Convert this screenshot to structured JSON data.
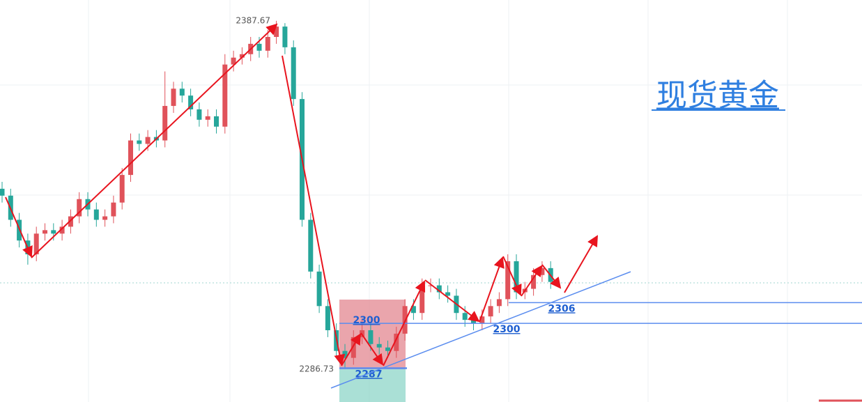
{
  "chart_data": {
    "type": "candlestick",
    "title": "现货黄金",
    "open": [
      2339,
      2337,
      2330,
      2324,
      2320,
      2326,
      2327,
      2326,
      2328,
      2331,
      2336,
      2333,
      2330,
      2331,
      2335,
      2343,
      2353,
      2352,
      2354,
      2353,
      2363,
      2368,
      2366,
      2362,
      2359,
      2360,
      2357,
      2375,
      2377,
      2378,
      2381,
      2379,
      2383,
      2386,
      2380,
      2365,
      2330,
      2315,
      2305,
      2298,
      2292,
      2290,
      2296,
      2298,
      2294,
      2293,
      2292,
      2297,
      2305,
      2303,
      2311,
      2311,
      2309,
      2308,
      2303,
      2301,
      2300,
      2302,
      2305,
      2307,
      2318,
      2309,
      2310,
      2314,
      2316
    ],
    "close": [
      2337,
      2330,
      2324,
      2320,
      2326,
      2327,
      2326,
      2328,
      2331,
      2336,
      2333,
      2330,
      2331,
      2335,
      2343,
      2353,
      2352,
      2354,
      2353,
      2363,
      2368,
      2366,
      2362,
      2359,
      2360,
      2357,
      2375,
      2377,
      2378,
      2381,
      2379,
      2383,
      2386,
      2380,
      2365,
      2330,
      2315,
      2305,
      2298,
      2292,
      2290,
      2296,
      2298,
      2294,
      2293,
      2292,
      2297,
      2305,
      2303,
      2311,
      2311,
      2309,
      2308,
      2303,
      2301,
      2300,
      2302,
      2305,
      2307,
      2318,
      2309,
      2310,
      2314,
      2316,
      2312
    ],
    "high": [
      2341,
      2339,
      2332,
      2326,
      2328,
      2329,
      2329,
      2330,
      2333,
      2338,
      2338,
      2335,
      2333,
      2337,
      2345,
      2355,
      2355,
      2356,
      2356,
      2373,
      2370,
      2370,
      2368,
      2364,
      2362,
      2362,
      2378,
      2379,
      2380,
      2383,
      2383,
      2385,
      2387.67,
      2387,
      2382,
      2367,
      2332,
      2317,
      2307,
      2300,
      2294,
      2298,
      2301,
      2300,
      2296,
      2295,
      2299,
      2307,
      2307,
      2313,
      2313,
      2313,
      2311,
      2310,
      2305,
      2303,
      2304,
      2307,
      2309,
      2320,
      2320,
      2312,
      2316,
      2318,
      2318
    ],
    "low": [
      2335,
      2328,
      2322,
      2317,
      2318,
      2324,
      2324,
      2324,
      2326,
      2329,
      2331,
      2328,
      2328,
      2329,
      2333,
      2341,
      2350,
      2350,
      2351,
      2351,
      2361,
      2364,
      2360,
      2357,
      2357,
      2355,
      2355,
      2373,
      2375,
      2376,
      2377,
      2377,
      2381,
      2378,
      2363,
      2328,
      2313,
      2303,
      2296,
      2290,
      2286.73,
      2288,
      2294,
      2292,
      2291,
      2290,
      2290,
      2295,
      2301,
      2301,
      2309,
      2307,
      2306,
      2301,
      2299,
      2298,
      2298,
      2300,
      2303,
      2305,
      2307,
      2307,
      2308,
      2312,
      2310
    ],
    "high_label": 2387.67,
    "low_label": 2286.73,
    "levels": [
      2306,
      2300,
      2300,
      2287
    ],
    "up_color": "#e0525a",
    "down_color": "#26a69a",
    "level_color": "#5b8def",
    "ylim": [
      2277.2,
      2393.7
    ]
  }
}
